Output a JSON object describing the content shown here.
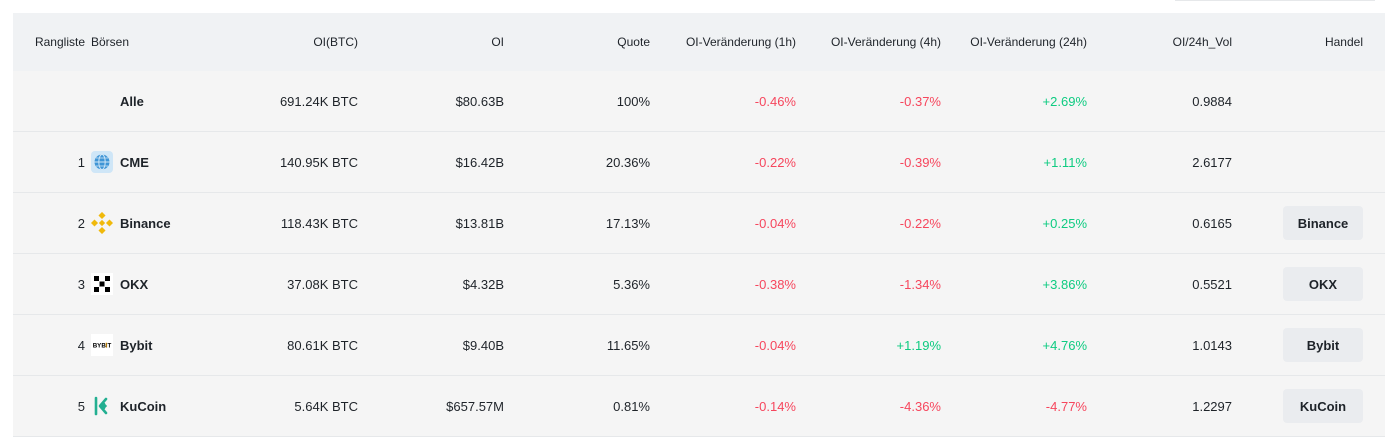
{
  "header": {
    "rank": "Rangliste",
    "exchange": "Börsen",
    "oi_btc": "OI(BTC)",
    "oi": "OI",
    "quote": "Quote",
    "change_1h": "OI-Veränderung (1h)",
    "change_4h": "OI-Veränderung (4h)",
    "change_24h": "OI-Veränderung (24h)",
    "oi_vol": "OI/24h_Vol",
    "trade": "Handel"
  },
  "colors": {
    "negative": "#f6465d",
    "positive": "#0ecb81"
  },
  "rows": [
    {
      "rank": "",
      "exchange": "Alle",
      "icon": "",
      "oi_btc": "691.24K BTC",
      "oi": "$80.63B",
      "quote": "100%",
      "change_1h": "-0.46%",
      "change_4h": "-0.37%",
      "change_24h": "+2.69%",
      "oi_vol": "0.9884",
      "trade": ""
    },
    {
      "rank": "1",
      "exchange": "CME",
      "icon": "cme-globe-icon",
      "oi_btc": "140.95K BTC",
      "oi": "$16.42B",
      "quote": "20.36%",
      "change_1h": "-0.22%",
      "change_4h": "-0.39%",
      "change_24h": "+1.11%",
      "oi_vol": "2.6177",
      "trade": ""
    },
    {
      "rank": "2",
      "exchange": "Binance",
      "icon": "binance-logo-icon",
      "oi_btc": "118.43K BTC",
      "oi": "$13.81B",
      "quote": "17.13%",
      "change_1h": "-0.04%",
      "change_4h": "-0.22%",
      "change_24h": "+0.25%",
      "oi_vol": "0.6165",
      "trade": "Binance"
    },
    {
      "rank": "3",
      "exchange": "OKX",
      "icon": "okx-logo-icon",
      "oi_btc": "37.08K BTC",
      "oi": "$4.32B",
      "quote": "5.36%",
      "change_1h": "-0.38%",
      "change_4h": "-1.34%",
      "change_24h": "+3.86%",
      "oi_vol": "0.5521",
      "trade": "OKX"
    },
    {
      "rank": "4",
      "exchange": "Bybit",
      "icon": "bybit-logo-icon",
      "oi_btc": "80.61K BTC",
      "oi": "$9.40B",
      "quote": "11.65%",
      "change_1h": "-0.04%",
      "change_4h": "+1.19%",
      "change_24h": "+4.76%",
      "oi_vol": "1.0143",
      "trade": "Bybit"
    },
    {
      "rank": "5",
      "exchange": "KuCoin",
      "icon": "kucoin-logo-icon",
      "oi_btc": "5.64K BTC",
      "oi": "$657.57M",
      "quote": "0.81%",
      "change_1h": "-0.14%",
      "change_4h": "-4.36%",
      "change_24h": "-4.77%",
      "oi_vol": "1.2297",
      "trade": "KuCoin"
    }
  ]
}
